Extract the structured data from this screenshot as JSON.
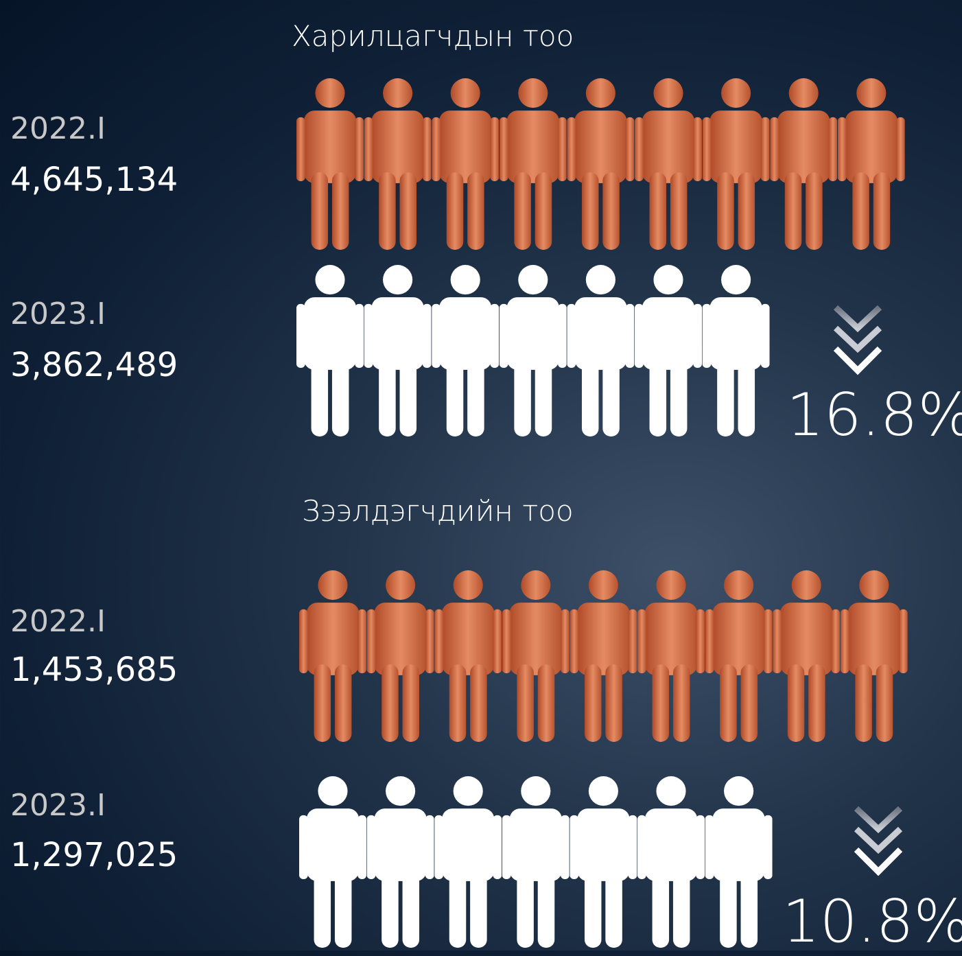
{
  "sections": [
    {
      "title": "Харилцагчдын тоо",
      "rows": [
        {
          "period": "2022.I",
          "value": "4,645,134"
        },
        {
          "period": "2023.I",
          "value": "3,862,489"
        }
      ],
      "change": "16.8%"
    },
    {
      "title": "Зээлдэгчдийн тоо",
      "rows": [
        {
          "period": "2022.I",
          "value": "1,453,685"
        },
        {
          "period": "2023.I",
          "value": "1,297,025"
        }
      ],
      "change": "10.8%"
    }
  ]
}
